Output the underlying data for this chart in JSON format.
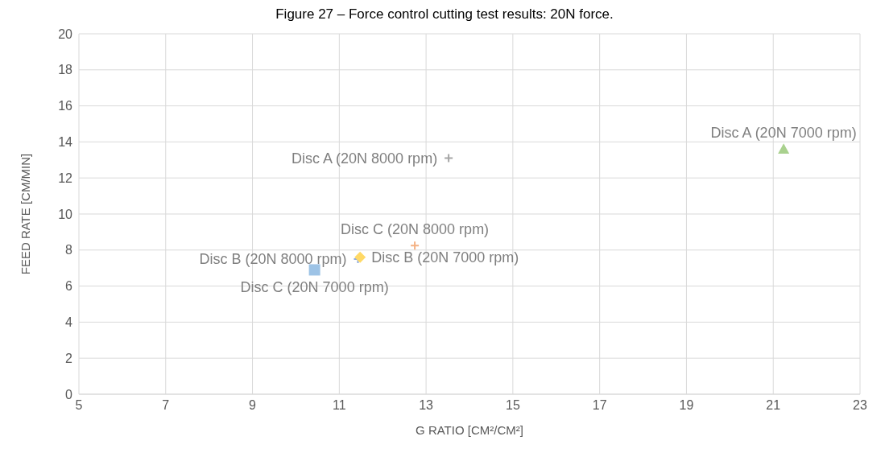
{
  "chart_data": {
    "type": "scatter",
    "title": "Figure 27 – Force control cutting test results: 20N force.",
    "xlabel": "G RATIO [CM²/CM²]",
    "ylabel": "FEED RATE [CM/MIN]",
    "xlim": [
      5,
      23
    ],
    "xticks": [
      5,
      7,
      9,
      11,
      13,
      15,
      17,
      19,
      21,
      23
    ],
    "ylim": [
      0,
      20
    ],
    "yticks": [
      0,
      2,
      4,
      6,
      8,
      10,
      12,
      14,
      16,
      18,
      20
    ],
    "grid": true,
    "legend": false,
    "series": [
      {
        "name": "Disc A (20N 8000 rpm)",
        "color": "#a5a5a5",
        "x": [
          13.52
        ],
        "values": [
          13.1
        ],
        "marker": "cross"
      },
      {
        "name": "Disc A (20N 7000 rpm)",
        "color": "#a9d18e",
        "x": [
          21.24
        ],
        "values": [
          13.6
        ],
        "marker": "triangle"
      },
      {
        "name": "Disc B (20N 8000 rpm)",
        "color": "#8faadc",
        "x": [
          11.43
        ],
        "values": [
          7.5
        ],
        "marker": "cross"
      },
      {
        "name": "Disc B (20N 7000 rpm)",
        "color": "#ffd966",
        "x": [
          11.48
        ],
        "values": [
          7.6
        ],
        "marker": "diamond"
      },
      {
        "name": "Disc C (20N 8000 rpm)",
        "color": "#f4b183",
        "x": [
          12.74
        ],
        "values": [
          8.25
        ],
        "marker": "cross"
      },
      {
        "name": "Disc C (20N 7000 rpm)",
        "color": "#9dc3e6",
        "x": [
          10.43
        ],
        "values": [
          6.9
        ],
        "marker": "square"
      }
    ]
  }
}
